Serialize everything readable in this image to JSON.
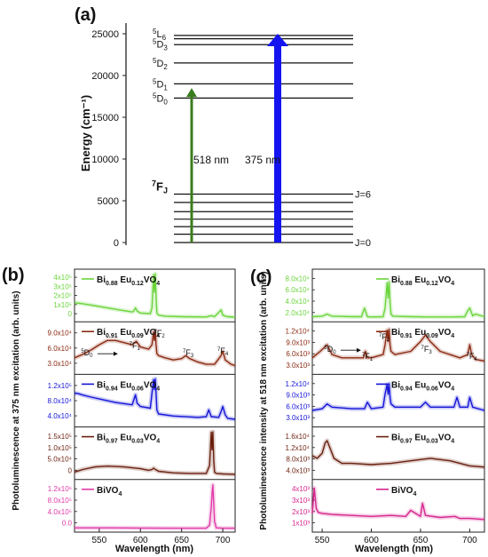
{
  "panels": {
    "a": {
      "label": "(a)",
      "ylabel": "Energy (cm⁻¹)",
      "yticks": [
        0,
        5000,
        10000,
        15000,
        20000,
        25000
      ],
      "level_labels": [
        {
          "sup": "5",
          "base": "L",
          "sub": "6",
          "energy": 25000
        },
        {
          "sup": "5",
          "base": "D",
          "sub": "3",
          "energy": 23800
        },
        {
          "sup": "5",
          "base": "D",
          "sub": "2",
          "energy": 21500
        },
        {
          "sup": "5",
          "base": "D",
          "sub": "1",
          "energy": 19000
        },
        {
          "sup": "5",
          "base": "D",
          "sub": "0",
          "energy": 17300
        },
        {
          "sup": "7",
          "base": "F",
          "sub": "J",
          "energy": 5800
        }
      ],
      "j_labels": [
        {
          "text": "J=6",
          "energy": 5800
        },
        {
          "text": "J=0",
          "energy": 0
        }
      ],
      "upper_levels": [
        24800,
        24400,
        23700,
        21500,
        19000,
        17300
      ],
      "lower_levels": [
        0,
        1000,
        1900,
        2800,
        3700,
        4800,
        5800
      ],
      "arrows": [
        {
          "name": "518-arrow",
          "label": "518 nm",
          "from": 0,
          "to": 18500,
          "color": "#3a7d1f"
        },
        {
          "name": "375-arrow",
          "label": "375 nm",
          "from": 0,
          "to": 25000,
          "color": "#1414f0"
        }
      ]
    },
    "b": {
      "label": "(b)",
      "ylabel": "Photoluminescence at 375 nm excitation (arb. units)",
      "xlabel": "Wavelength (nm)",
      "xticks": [
        550,
        600,
        650,
        700
      ]
    },
    "c": {
      "label": "(c)",
      "ylabel": "Photoluminescence intensity at 518 nm excitation (arb. units)",
      "xlabel": "Wavelength (nm)",
      "xticks": [
        550,
        600,
        650,
        700
      ]
    }
  },
  "transitions": {
    "d0": {
      "sup": "5",
      "base": "D",
      "sub": "0"
    },
    "f1": {
      "sup": "7",
      "base": "F",
      "sub": "1"
    },
    "f2": {
      "sup": "7",
      "base": "F",
      "sub": "2"
    },
    "f3": {
      "sup": "7",
      "base": "F",
      "sub": "3"
    },
    "f4": {
      "sup": "7",
      "base": "F",
      "sub": "4"
    }
  },
  "chart_data": [
    {
      "type": "line",
      "panel": "b",
      "xlabel": "Wavelength (nm)",
      "ylabel": "Photoluminescence at 375 nm excitation (arb. units)",
      "xlim": [
        520,
        715
      ],
      "subplots": [
        {
          "sample": "Bi0.88Eu0.12VO4",
          "color": "#6ad43a",
          "ytick_labels": [
            "0",
            "1x10⁵",
            "2x10⁵",
            "3x10⁵",
            "4x10⁵"
          ],
          "ylim": [
            0,
            440000
          ],
          "x": [
            520,
            530,
            545,
            560,
            575,
            590,
            592,
            594,
            596,
            600,
            612,
            614,
            616,
            617,
            618,
            619,
            620,
            622,
            630,
            650,
            680,
            686,
            690,
            698,
            700,
            703,
            706,
            715
          ],
          "y": [
            150000,
            140000,
            120000,
            100000,
            80000,
            60000,
            70000,
            100000,
            70000,
            50000,
            45000,
            100000,
            420000,
            250000,
            430000,
            200000,
            50000,
            30000,
            20000,
            15000,
            12000,
            25000,
            15000,
            80000,
            30000,
            20000,
            15000,
            10000
          ]
        },
        {
          "sample": "Bi0.91Eu0.09VO4",
          "color": "#8b2a12",
          "ytick_labels": [
            "3.0x10⁴",
            "6.0x10⁴",
            "9.0x10⁴"
          ],
          "ylim": [
            0,
            105000
          ],
          "x": [
            520,
            530,
            540,
            550,
            560,
            570,
            580,
            590,
            595,
            600,
            610,
            614,
            616,
            617,
            618,
            619,
            620,
            622,
            630,
            640,
            650,
            655,
            660,
            670,
            680,
            690,
            698,
            700,
            703,
            710,
            715
          ],
          "y": [
            30000,
            38000,
            48000,
            60000,
            70000,
            70000,
            65000,
            60000,
            68000,
            55000,
            50000,
            60000,
            90000,
            70000,
            92000,
            60000,
            40000,
            35000,
            30000,
            25000,
            28000,
            35000,
            28000,
            20000,
            15000,
            15000,
            35000,
            45000,
            25000,
            15000,
            12000
          ]
        },
        {
          "sample": "Bi0.94Eu0.06VO4",
          "color": "#1414d8",
          "ytick_labels": [
            "4.0x10⁴",
            "8.0x10⁴",
            "1.2x10⁵"
          ],
          "ylim": [
            0,
            135000
          ],
          "x": [
            520,
            525,
            530,
            540,
            555,
            570,
            590,
            592,
            594,
            596,
            600,
            612,
            614,
            616,
            617,
            618,
            619,
            620,
            622,
            640,
            670,
            680,
            683,
            686,
            695,
            698,
            700,
            703,
            706,
            715
          ],
          "y": [
            90000,
            88000,
            84000,
            78000,
            70000,
            62000,
            55000,
            70000,
            85000,
            60000,
            50000,
            45000,
            90000,
            130000,
            100000,
            132000,
            90000,
            40000,
            28000,
            22000,
            18000,
            20000,
            40000,
            20000,
            18000,
            35000,
            50000,
            25000,
            15000,
            12000
          ]
        },
        {
          "sample": "Bi0.97Eu0.03VO4",
          "color": "#6b1f0e",
          "ytick_labels": [
            "0",
            "5.0x10⁴",
            "1.0x10⁵",
            "1.5x10⁵"
          ],
          "ylim": [
            0,
            175000
          ],
          "x": [
            520,
            530,
            545,
            560,
            580,
            600,
            610,
            614,
            616,
            618,
            620,
            622,
            640,
            660,
            680,
            684,
            686,
            687,
            688,
            689,
            690,
            692,
            700,
            715
          ],
          "y": [
            15000,
            25000,
            35000,
            38000,
            35000,
            28000,
            22000,
            25000,
            30000,
            25000,
            22000,
            18000,
            12000,
            10000,
            10000,
            40000,
            168000,
            100000,
            170000,
            60000,
            15000,
            10000,
            8000,
            6000
          ]
        },
        {
          "sample": "BiVO4",
          "color": "#e03aa8",
          "ytick_labels": [
            "0.0",
            "4.0x10⁵",
            "8.0x10⁵",
            "1.2x10⁶"
          ],
          "ylim": [
            0,
            1300000
          ],
          "x": [
            520,
            560,
            600,
            640,
            680,
            684,
            686,
            687,
            688,
            689,
            690,
            692,
            700,
            715
          ],
          "y": [
            20000,
            20000,
            15000,
            10000,
            10000,
            100000,
            600000,
            1000000,
            1250000,
            700000,
            200000,
            20000,
            10000,
            10000
          ]
        }
      ]
    },
    {
      "type": "line",
      "panel": "c",
      "xlabel": "Wavelength (nm)",
      "ylabel": "Photoluminescence intensity at 518 nm excitation (arb. units)",
      "xlim": [
        540,
        715
      ],
      "subplots": [
        {
          "sample": "Bi0.88Eu0.12VO4",
          "color": "#6ad43a",
          "ytick_labels": [
            "2.0x10⁴",
            "4.0x10⁴",
            "6.0x10⁴",
            "8.0x10⁴"
          ],
          "ylim": [
            0,
            90000
          ],
          "x": [
            540,
            550,
            555,
            560,
            580,
            590,
            593,
            596,
            600,
            612,
            614,
            616,
            617,
            618,
            619,
            620,
            622,
            640,
            660,
            680,
            695,
            698,
            700,
            703,
            706,
            715
          ],
          "y": [
            3000,
            4000,
            8000,
            4000,
            3000,
            3000,
            20000,
            3000,
            2500,
            3000,
            20000,
            70000,
            40000,
            72000,
            30000,
            8000,
            4000,
            3000,
            2500,
            2500,
            3000,
            15000,
            20000,
            5000,
            8000,
            3000
          ]
        },
        {
          "sample": "Bi0.91Eu0.09VO4",
          "color": "#8b2a12",
          "ytick_labels": [
            "3.0x10³",
            "6.0x10³",
            "9.0x10³",
            "1.2x10⁴"
          ],
          "ylim": [
            0,
            14000
          ],
          "x": [
            540,
            548,
            555,
            560,
            570,
            580,
            592,
            594,
            596,
            600,
            612,
            614,
            616,
            617,
            618,
            619,
            620,
            624,
            640,
            650,
            655,
            660,
            670,
            690,
            698,
            700,
            702,
            706,
            715
          ],
          "y": [
            4000,
            6000,
            8000,
            5000,
            4000,
            4000,
            4000,
            6000,
            4000,
            4000,
            5000,
            8000,
            12500,
            9000,
            12800,
            8000,
            6000,
            5000,
            6000,
            9000,
            11000,
            9000,
            6000,
            4000,
            5000,
            8000,
            5000,
            3500,
            3000
          ]
        },
        {
          "sample": "Bi0.94Eu0.06VO4",
          "color": "#1414d8",
          "ytick_labels": [
            "3.0x10³",
            "6.0x10³",
            "9.0x10³",
            "1.2x10⁴"
          ],
          "ylim": [
            0,
            14000
          ],
          "x": [
            540,
            550,
            555,
            560,
            580,
            593,
            596,
            600,
            612,
            614,
            616,
            617,
            618,
            619,
            620,
            624,
            650,
            655,
            660,
            684,
            687,
            690,
            698,
            700,
            703,
            715
          ],
          "y": [
            4000,
            4500,
            6000,
            5000,
            4500,
            4500,
            6500,
            4500,
            5000,
            9000,
            12000,
            9000,
            12200,
            8000,
            6000,
            5000,
            5000,
            6500,
            5000,
            5000,
            8000,
            5000,
            5000,
            8000,
            5000,
            4000
          ]
        },
        {
          "sample": "Bi0.97Eu0.03VO4",
          "color": "#6b1f0e",
          "ytick_labels": [
            "4.0x10³",
            "8.0x10³",
            "1.2x10⁴",
            "1.6x10⁴"
          ],
          "ylim": [
            0,
            18000
          ],
          "x": [
            540,
            545,
            550,
            553,
            555,
            558,
            562,
            570,
            580,
            600,
            620,
            640,
            660,
            680,
            700,
            715
          ],
          "y": [
            8000,
            7000,
            9000,
            13000,
            14000,
            11000,
            7000,
            5000,
            5000,
            4500,
            5000,
            6000,
            7000,
            6000,
            4000,
            3500
          ]
        },
        {
          "sample": "BiVO4",
          "color": "#d6258e",
          "ytick_labels": [
            "1x10³",
            "2x10³",
            "3x10³",
            "4x10³"
          ],
          "ylim": [
            0,
            4500
          ],
          "x": [
            540,
            542,
            544,
            546,
            550,
            560,
            580,
            600,
            620,
            635,
            640,
            650,
            652,
            655,
            670,
            685,
            690,
            700,
            715
          ],
          "y": [
            1500,
            4000,
            2000,
            1600,
            1500,
            1400,
            1300,
            1200,
            1300,
            1200,
            1800,
            1200,
            2500,
            1300,
            1100,
            1200,
            1000,
            1000,
            900
          ]
        }
      ]
    }
  ]
}
